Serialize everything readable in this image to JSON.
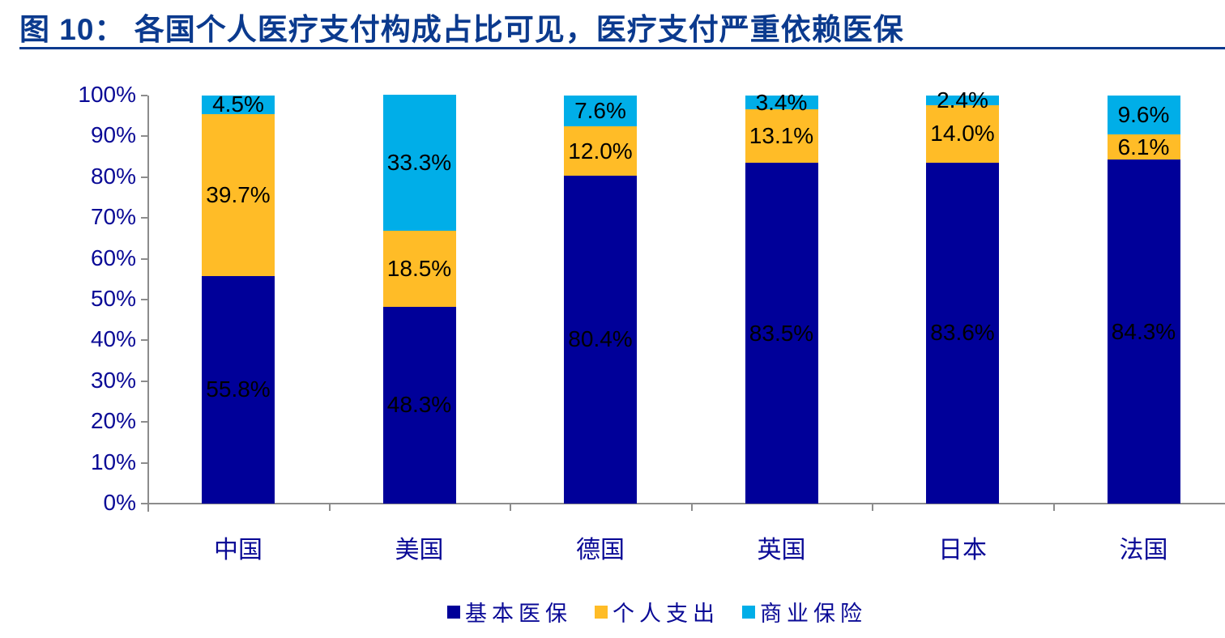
{
  "title": "图 10： 各国个人医疗支付构成占比可见，医疗支付严重依赖医保",
  "colors": {
    "title": "#0b3a8e",
    "basic_insurance": "#000099",
    "out_of_pocket": "#FFBC27",
    "commercial_insurance": "#00AEE8",
    "axis": "#8c8c8c",
    "tick_text": "#0a0a96"
  },
  "chart_data": {
    "type": "bar",
    "stacked": true,
    "percent_stacked": true,
    "title": "各国个人医疗支付构成占比可见，医疗支付严重依赖医保",
    "xlabel": "",
    "ylabel": "",
    "ylim": [
      0,
      100
    ],
    "yticks": [
      "0%",
      "10%",
      "20%",
      "30%",
      "40%",
      "50%",
      "60%",
      "70%",
      "80%",
      "90%",
      "100%"
    ],
    "categories": [
      "中国",
      "美国",
      "德国",
      "英国",
      "日本",
      "法国"
    ],
    "series": [
      {
        "name": "基本医保",
        "color": "#000099",
        "values": [
          55.8,
          48.3,
          80.4,
          83.5,
          83.6,
          84.3
        ],
        "labels": [
          "55.8%",
          "48.3%",
          "80.4%",
          "83.5%",
          "83.6%",
          "84.3%"
        ]
      },
      {
        "name": "个人支出",
        "color": "#FFBC27",
        "values": [
          39.7,
          18.5,
          12.0,
          13.1,
          14.0,
          6.1
        ],
        "labels": [
          "39.7%",
          "18.5%",
          "12.0%",
          "13.1%",
          "14.0%",
          "6.1%"
        ]
      },
      {
        "name": "商业保险",
        "color": "#00AEE8",
        "values": [
          4.5,
          33.3,
          7.6,
          3.4,
          2.4,
          9.6
        ],
        "labels": [
          "4.5%",
          "33.3%",
          "7.6%",
          "3.4%",
          "2.4%",
          "9.6%"
        ]
      }
    ],
    "grid": false,
    "legend_position": "bottom"
  },
  "legend": {
    "items": [
      {
        "label": "基本医保",
        "color": "#000099"
      },
      {
        "label": "个人支出",
        "color": "#FFBC27"
      },
      {
        "label": "商业保险",
        "color": "#00AEE8"
      }
    ]
  }
}
